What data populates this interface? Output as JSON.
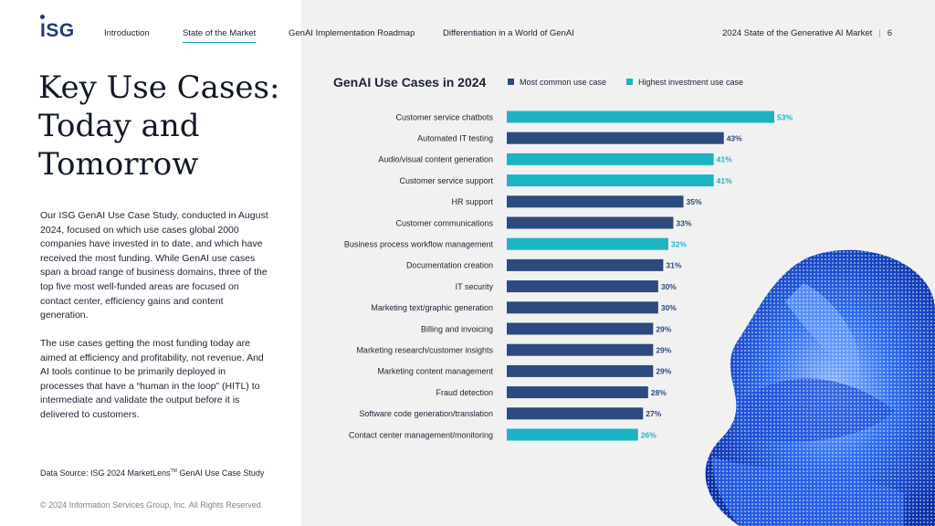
{
  "logo": {
    "text": "ISG"
  },
  "nav": {
    "items": [
      "Introduction",
      "State of the Market",
      "GenAI Implementation Roadmap",
      "Differentiation in a World of GenAI"
    ],
    "active": "State of the Market"
  },
  "header": {
    "report_title": "2024 State of the Generative AI Market",
    "page_number": "6"
  },
  "page_title": "Key Use Cases: Today and Tomorrow",
  "body": {
    "paragraph1": "Our ISG GenAI Use Case Study, conducted in August 2024, focused on which use cases global 2000 companies have invested in to date, and which have received the most funding. While GenAI use cases span a broad range of business domains, three of the top five most well-funded areas are focused on contact center, efficiency gains and content generation.",
    "paragraph2": "The use cases getting the most funding today are aimed at efficiency and profitability, not revenue. And AI tools continue to be primarily deployed in processes that have a “human in the loop” (HITL) to intermediate and validate the output before it is delivered to customers."
  },
  "source": {
    "prefix": "Data Source: ISG 2024 MarketLens",
    "tm": "TM",
    "suffix": " GenAI Use Case Study"
  },
  "copyright": "© 2024 Information Services Group, Inc. All Rights Reserved.",
  "colors": {
    "common": "#2c4a7e",
    "investment": "#1cb3c4",
    "accent_line": "#1fa3b0",
    "brand": "#1f3a73"
  },
  "chart_data": {
    "type": "bar",
    "orientation": "horizontal",
    "title": "GenAI Use Cases in 2024",
    "legend": [
      {
        "key": "common",
        "label": "Most common use case"
      },
      {
        "key": "investment",
        "label": "Highest investment use case"
      }
    ],
    "categories": [
      "Customer service chatbots",
      "Automated IT testing",
      "Audio/visual content generation",
      "Customer service support",
      "HR support",
      "Customer communications",
      "Business process workflow management",
      "Documentation creation",
      "IT security",
      "Marketing text/graphic generation",
      "Billing and invoicing",
      "Marketing research/customer insights",
      "Marketing content management",
      "Fraud detection",
      "Software code generation/translation",
      "Contact center management/monitoring"
    ],
    "values": [
      53,
      43,
      41,
      41,
      35,
      33,
      32,
      31,
      30,
      30,
      29,
      29,
      29,
      28,
      27,
      26
    ],
    "value_labels": [
      "53%",
      "43%",
      "41%",
      "41%",
      "35%",
      "33%",
      "32%",
      "31%",
      "30%",
      "30%",
      "29%",
      "29%",
      "29%",
      "28%",
      "27%",
      "26%"
    ],
    "category_type": [
      "investment",
      "common",
      "investment",
      "investment",
      "common",
      "common",
      "investment",
      "common",
      "common",
      "common",
      "common",
      "common",
      "common",
      "common",
      "common",
      "investment"
    ],
    "xlim": [
      0,
      53
    ],
    "unit": "%"
  }
}
